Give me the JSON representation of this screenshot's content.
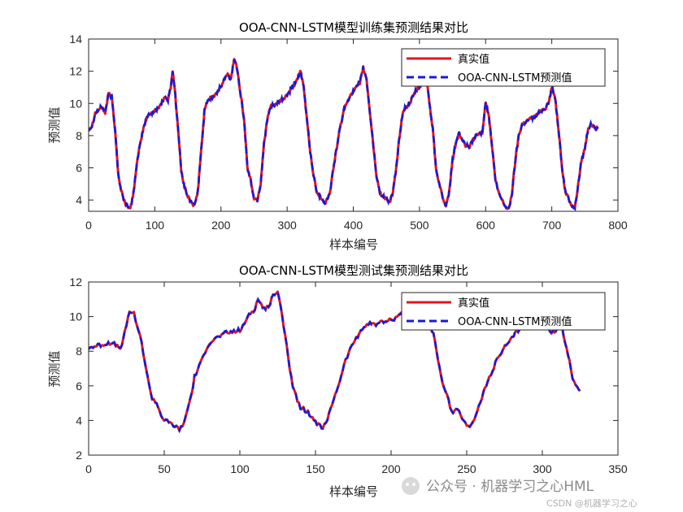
{
  "colors": {
    "true_series": "#e3141d",
    "pred_series": "#1a1ad4",
    "axis": "#262626"
  },
  "chart_data": [
    {
      "type": "line",
      "title": "OOA-CNN-LSTM模型训练集预测结果对比",
      "xlabel": "样本编号",
      "ylabel": "预测值",
      "xlim": [
        0,
        800
      ],
      "ylim": [
        3.3,
        14
      ],
      "xticks": [
        0,
        100,
        200,
        300,
        400,
        500,
        600,
        700,
        800
      ],
      "yticks": [
        4,
        6,
        8,
        10,
        12,
        14
      ],
      "legend_position": "top-right",
      "legend": [
        "真实值",
        "OOA-CNN-LSTM预测值"
      ],
      "series_keypoints": [
        [
          0,
          8.4
        ],
        [
          5,
          8.6
        ],
        [
          10,
          9.4
        ],
        [
          15,
          9.6
        ],
        [
          20,
          9.8
        ],
        [
          25,
          9.4
        ],
        [
          30,
          10.6
        ],
        [
          35,
          10.4
        ],
        [
          40,
          8.4
        ],
        [
          45,
          5.5
        ],
        [
          48,
          4.8
        ],
        [
          55,
          3.8
        ],
        [
          60,
          3.6
        ],
        [
          63,
          3.4
        ],
        [
          68,
          4.5
        ],
        [
          72,
          6
        ],
        [
          78,
          7.5
        ],
        [
          83,
          8.5
        ],
        [
          90,
          9.3
        ],
        [
          100,
          9.5
        ],
        [
          110,
          10
        ],
        [
          115,
          10.4
        ],
        [
          120,
          10.2
        ],
        [
          124,
          11
        ],
        [
          127,
          12
        ],
        [
          130,
          11
        ],
        [
          135,
          8.5
        ],
        [
          140,
          5.8
        ],
        [
          145,
          4.8
        ],
        [
          150,
          4.2
        ],
        [
          155,
          3.9
        ],
        [
          160,
          3.6
        ],
        [
          165,
          4.5
        ],
        [
          170,
          7
        ],
        [
          175,
          9.5
        ],
        [
          180,
          10.2
        ],
        [
          190,
          10.5
        ],
        [
          200,
          11
        ],
        [
          205,
          11.5
        ],
        [
          210,
          11.8
        ],
        [
          215,
          11.5
        ],
        [
          220,
          12.8
        ],
        [
          225,
          12.1
        ],
        [
          230,
          10.5
        ],
        [
          235,
          9
        ],
        [
          240,
          6
        ],
        [
          245,
          5.2
        ],
        [
          250,
          4.1
        ],
        [
          255,
          4
        ],
        [
          260,
          5
        ],
        [
          265,
          7.5
        ],
        [
          270,
          9
        ],
        [
          275,
          9.8
        ],
        [
          285,
          10
        ],
        [
          295,
          10.3
        ],
        [
          300,
          10.5
        ],
        [
          308,
          11
        ],
        [
          315,
          11.5
        ],
        [
          320,
          12
        ],
        [
          325,
          11
        ],
        [
          330,
          9
        ],
        [
          335,
          7
        ],
        [
          340,
          5.5
        ],
        [
          345,
          4.5
        ],
        [
          350,
          4.2
        ],
        [
          358,
          3.8
        ],
        [
          365,
          4.5
        ],
        [
          370,
          6
        ],
        [
          378,
          8
        ],
        [
          385,
          9.5
        ],
        [
          395,
          10.5
        ],
        [
          405,
          11
        ],
        [
          410,
          11.3
        ],
        [
          415,
          12.2
        ],
        [
          420,
          11.5
        ],
        [
          425,
          9.5
        ],
        [
          430,
          7.5
        ],
        [
          435,
          5.5
        ],
        [
          440,
          4.5
        ],
        [
          445,
          4.2
        ],
        [
          450,
          4.1
        ],
        [
          455,
          3.8
        ],
        [
          460,
          4.5
        ],
        [
          465,
          6
        ],
        [
          470,
          8
        ],
        [
          475,
          9.5
        ],
        [
          485,
          10
        ],
        [
          495,
          10.8
        ],
        [
          500,
          11
        ],
        [
          505,
          11.4
        ],
        [
          512,
          11.2
        ],
        [
          515,
          10
        ],
        [
          520,
          8.5
        ],
        [
          525,
          6
        ],
        [
          530,
          5
        ],
        [
          535,
          4.2
        ],
        [
          540,
          3.5
        ],
        [
          545,
          4.5
        ],
        [
          550,
          6.5
        ],
        [
          555,
          7.5
        ],
        [
          560,
          8.2
        ],
        [
          565,
          7.6
        ],
        [
          570,
          7.4
        ],
        [
          575,
          7.3
        ],
        [
          585,
          8
        ],
        [
          590,
          8.1
        ],
        [
          595,
          8.2
        ],
        [
          600,
          10.1
        ],
        [
          605,
          9.2
        ],
        [
          610,
          7.2
        ],
        [
          615,
          5.2
        ],
        [
          620,
          4.4
        ],
        [
          625,
          4
        ],
        [
          630,
          3.6
        ],
        [
          635,
          3.4
        ],
        [
          640,
          4.5
        ],
        [
          645,
          6.5
        ],
        [
          650,
          8
        ],
        [
          655,
          8.7
        ],
        [
          665,
          9
        ],
        [
          675,
          9.2
        ],
        [
          685,
          9.6
        ],
        [
          690,
          9.7
        ],
        [
          695,
          10
        ],
        [
          700,
          11
        ],
        [
          705,
          10.4
        ],
        [
          710,
          8.5
        ],
        [
          715,
          6.2
        ],
        [
          720,
          4.6
        ],
        [
          725,
          4.1
        ],
        [
          730,
          3.7
        ],
        [
          735,
          3.5
        ],
        [
          740,
          5
        ],
        [
          745,
          6.5
        ],
        [
          750,
          7.2
        ],
        [
          755,
          8.5
        ],
        [
          760,
          8.7
        ],
        [
          765,
          8.4
        ],
        [
          770,
          8.5
        ]
      ]
    },
    {
      "type": "line",
      "title": "OOA-CNN-LSTM模型测试集预测结果对比",
      "xlabel": "样本编号",
      "ylabel": "预测值",
      "xlim": [
        0,
        350
      ],
      "ylim": [
        2,
        12
      ],
      "xticks": [
        0,
        50,
        100,
        150,
        200,
        250,
        300,
        350
      ],
      "yticks": [
        2,
        4,
        6,
        8,
        10,
        12
      ],
      "legend_position": "top-right",
      "legend": [
        "真实值",
        "OOA-CNN-LSTM预测值"
      ],
      "series_keypoints": [
        [
          0,
          8.2
        ],
        [
          5,
          8.3
        ],
        [
          10,
          8.4
        ],
        [
          15,
          8.5
        ],
        [
          20,
          8.2
        ],
        [
          22,
          8.3
        ],
        [
          25,
          9.5
        ],
        [
          27,
          10.3
        ],
        [
          30,
          10.2
        ],
        [
          35,
          8.5
        ],
        [
          38,
          7
        ],
        [
          40,
          6
        ],
        [
          42,
          5.3
        ],
        [
          45,
          5
        ],
        [
          48,
          4.3
        ],
        [
          50,
          4
        ],
        [
          55,
          3.8
        ],
        [
          60,
          3.5
        ],
        [
          62,
          3.6
        ],
        [
          65,
          4.5
        ],
        [
          68,
          5.5
        ],
        [
          70,
          6.5
        ],
        [
          75,
          7.5
        ],
        [
          78,
          8.2
        ],
        [
          80,
          8.5
        ],
        [
          85,
          8.8
        ],
        [
          90,
          9
        ],
        [
          95,
          9.1
        ],
        [
          100,
          9.2
        ],
        [
          103,
          9.5
        ],
        [
          105,
          10
        ],
        [
          110,
          10.5
        ],
        [
          112,
          11
        ],
        [
          115,
          10.6
        ],
        [
          117,
          10.4
        ],
        [
          120,
          10.8
        ],
        [
          122,
          11.3
        ],
        [
          125,
          11.4
        ],
        [
          127,
          10.5
        ],
        [
          130,
          9
        ],
        [
          133,
          7
        ],
        [
          135,
          6
        ],
        [
          138,
          5.2
        ],
        [
          140,
          4.8
        ],
        [
          145,
          4.5
        ],
        [
          150,
          3.9
        ],
        [
          155,
          3.6
        ],
        [
          158,
          4
        ],
        [
          160,
          4.7
        ],
        [
          165,
          6
        ],
        [
          170,
          7.5
        ],
        [
          175,
          8.5
        ],
        [
          180,
          9.2
        ],
        [
          185,
          9.6
        ],
        [
          190,
          9.6
        ],
        [
          195,
          9.7
        ],
        [
          200,
          9.8
        ],
        [
          203,
          9.9
        ],
        [
          205,
          10.2
        ],
        [
          207,
          10.2
        ],
        [
          210,
          10.3
        ],
        [
          215,
          10.4
        ],
        [
          220,
          10.1
        ],
        [
          225,
          9.7
        ],
        [
          228,
          9
        ],
        [
          230,
          8
        ],
        [
          232,
          7
        ],
        [
          235,
          5.8
        ],
        [
          238,
          5.2
        ],
        [
          240,
          4.5
        ],
        [
          245,
          4.6
        ],
        [
          248,
          3.9
        ],
        [
          252,
          3.7
        ],
        [
          255,
          4
        ],
        [
          258,
          4.8
        ],
        [
          262,
          5.8
        ],
        [
          265,
          6.5
        ],
        [
          270,
          7.5
        ],
        [
          275,
          8.2
        ],
        [
          278,
          8.5
        ],
        [
          282,
          9
        ],
        [
          288,
          9.6
        ],
        [
          292,
          9.8
        ],
        [
          295,
          10.2
        ],
        [
          298,
          9.7
        ],
        [
          300,
          9.5
        ],
        [
          305,
          9.2
        ],
        [
          308,
          9
        ],
        [
          312,
          9.8
        ],
        [
          315,
          8.5
        ],
        [
          318,
          7.5
        ],
        [
          320,
          6.5
        ],
        [
          322,
          6
        ],
        [
          325,
          5.7
        ]
      ]
    }
  ],
  "watermark": {
    "text": "公众号 · 机器学习之心HML",
    "sub": "CSDN @机器学习之心"
  }
}
